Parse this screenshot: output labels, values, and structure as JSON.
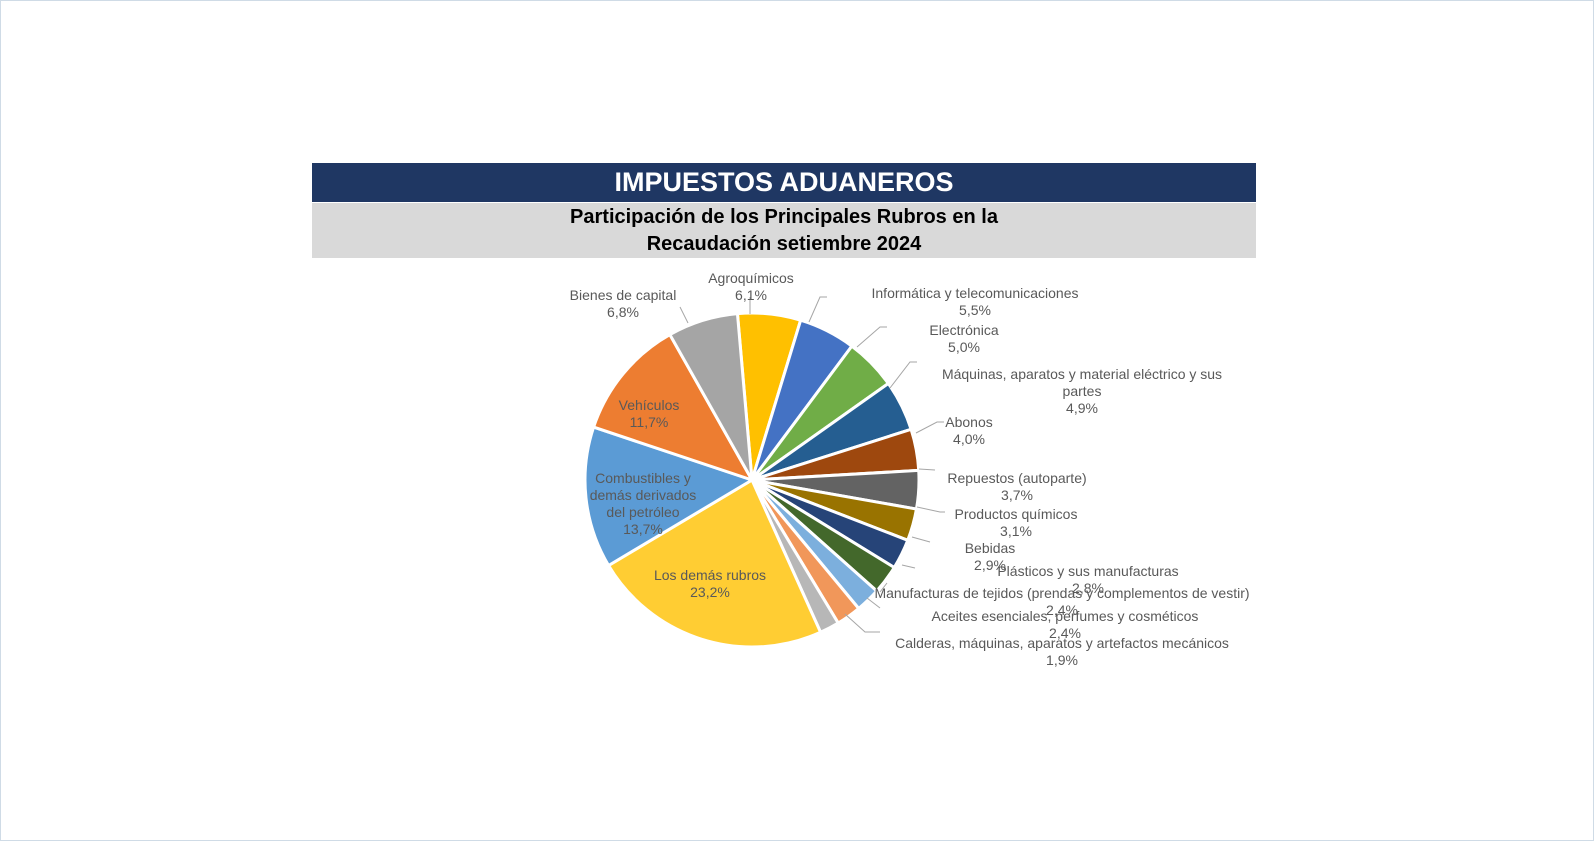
{
  "header": {
    "title": "IMPUESTOS ADUANEROS",
    "subtitle_line1": "Participación de los Principales Rubros en la",
    "subtitle_line2": "Recaudación setiembre 2024"
  },
  "chart_data": {
    "type": "pie",
    "title": "Participación de los Principales Rubros en la Recaudación setiembre 2024",
    "start_category": "Agroquímicos",
    "direction": "clockwise",
    "slices": [
      {
        "label": [
          "Agroquímicos"
        ],
        "value": 6.1,
        "value_label": "6,1%",
        "color": "#ffc000"
      },
      {
        "label": [
          "Informática y telecomunicaciones"
        ],
        "value": 5.5,
        "value_label": "5,5%",
        "color": "#4472c4"
      },
      {
        "label": [
          "Electrónica"
        ],
        "value": 5.0,
        "value_label": "5,0%",
        "color": "#70ad47"
      },
      {
        "label": [
          "Máquinas, aparatos y material eléctrico y sus",
          "partes"
        ],
        "value": 4.9,
        "value_label": "4,9%",
        "color": "#255e91"
      },
      {
        "label": [
          "Abonos"
        ],
        "value": 4.0,
        "value_label": "4,0%",
        "color": "#9e480e"
      },
      {
        "label": [
          "Repuestos (autoparte)"
        ],
        "value": 3.7,
        "value_label": "3,7%",
        "color": "#636363"
      },
      {
        "label": [
          "Productos químicos"
        ],
        "value": 3.1,
        "value_label": "3,1%",
        "color": "#997300"
      },
      {
        "label": [
          "Bebidas"
        ],
        "value": 2.9,
        "value_label": "2,9%",
        "color": "#264478"
      },
      {
        "label": [
          "Plásticos y sus manufacturas"
        ],
        "value": 2.8,
        "value_label": "2,8%",
        "color": "#43682b"
      },
      {
        "label": [
          "Manufacturas de tejidos (prendas y complementos de vestir)"
        ],
        "value": 2.4,
        "value_label": "2,4%",
        "color": "#7cafdd"
      },
      {
        "label": [
          "Aceites esenciales, perfumes y cosméticos"
        ],
        "value": 2.4,
        "value_label": "2,4%",
        "color": "#f1975a"
      },
      {
        "label": [
          "Calderas, máquinas, aparatos y artefactos mecánicos"
        ],
        "value": 1.9,
        "value_label": "1,9%",
        "color": "#b7b7b7"
      },
      {
        "label": [
          "Los demás rubros"
        ],
        "value": 23.2,
        "value_label": "23,2%",
        "color": "#ffcd33"
      },
      {
        "label": [
          "Combustibles y",
          "demás derivados",
          "del petróleo"
        ],
        "value": 13.7,
        "value_label": "13,7%",
        "color": "#5b9bd5"
      },
      {
        "label": [
          "Vehículos"
        ],
        "value": 11.7,
        "value_label": "11,7%",
        "color": "#ed7d31"
      },
      {
        "label": [
          "Bienes de capital"
        ],
        "value": 6.8,
        "value_label": "6,8%",
        "color": "#a5a5a5"
      }
    ]
  }
}
